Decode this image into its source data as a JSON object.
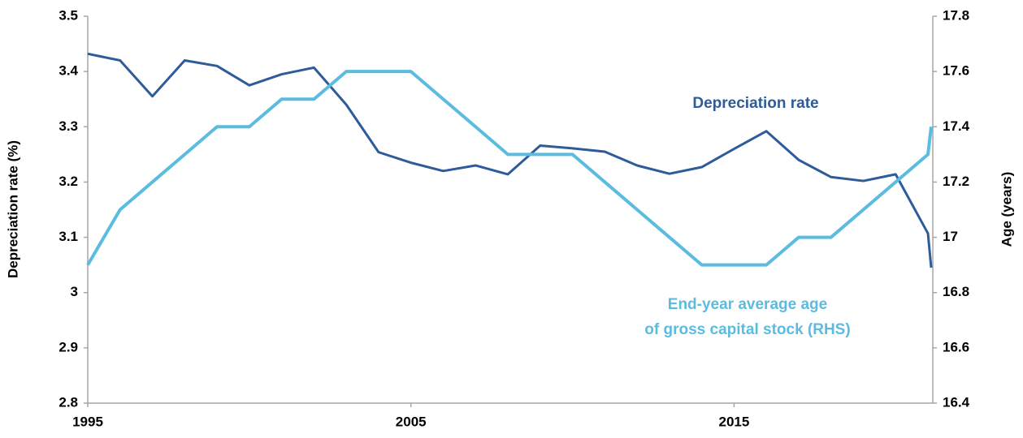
{
  "chart_data": {
    "type": "line",
    "y_label": "Depreciation rate (%)",
    "y2_label": "Age (years)",
    "x": [
      1995,
      1996,
      1997,
      1998,
      1999,
      2000,
      2001,
      2002,
      2003,
      2004,
      2005,
      2006,
      2007,
      2008,
      2009,
      2010,
      2011,
      2012,
      2013,
      2014,
      2015,
      2016,
      2017,
      2018,
      2019,
      2020,
      2021,
      2021.1
    ],
    "xlim": [
      1995,
      2021.15
    ],
    "xticks": [
      1995,
      2005,
      2015
    ],
    "ylim": [
      2.8,
      3.5
    ],
    "yticks": [
      3.5,
      3.4,
      3.3,
      3.2,
      3.1,
      3,
      2.9,
      2.8
    ],
    "y2lim": [
      16.4,
      17.8
    ],
    "y2ticks": [
      17.8,
      17.6,
      17.4,
      17.2,
      17,
      16.8,
      16.6,
      16.4
    ],
    "grid": false,
    "series": [
      {
        "color": "#2e5b99",
        "values": [
          3.432,
          3.42,
          3.355,
          3.42,
          3.41,
          3.375,
          3.395,
          3.407,
          3.34,
          3.254,
          3.235,
          3.22,
          3.23,
          3.214,
          3.266,
          3.261,
          3.255,
          3.23,
          3.215,
          3.227,
          3.26,
          3.292,
          3.24,
          3.209,
          3.202,
          3.214,
          3.107,
          3.045
        ]
      },
      {
        "color": "#5bbcdf",
        "axis": "y2",
        "values": [
          16.9,
          17.1,
          17.2,
          17.3,
          17.4,
          17.4,
          17.5,
          17.5,
          17.6,
          17.6,
          17.6,
          17.5,
          17.4,
          17.3,
          17.3,
          17.3,
          17.2,
          17.1,
          17.0,
          16.9,
          16.9,
          16.9,
          17.0,
          17.0,
          17.1,
          17.2,
          17.3,
          17.4
        ]
      }
    ],
    "annotations": [
      {
        "series": 0,
        "lines": [
          "Depreciation rate"
        ]
      },
      {
        "series": 1,
        "lines": [
          "End-year average age",
          "of gross capital stock (RHS)"
        ]
      }
    ]
  }
}
